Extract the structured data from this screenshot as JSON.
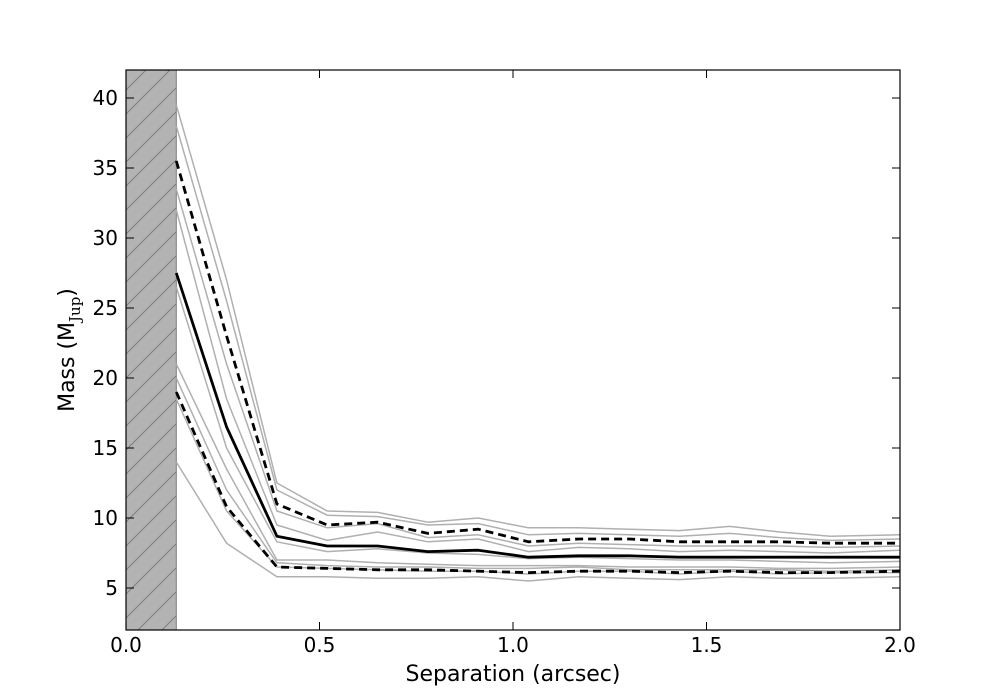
{
  "chart_data": {
    "type": "line",
    "title": "",
    "xlabel": "Separation (arcsec)",
    "ylabel": "Mass (M",
    "ylabel_subscript": "Jup",
    "ylabel_close": ")",
    "xlim": [
      0.0,
      2.0
    ],
    "ylim": [
      2,
      42
    ],
    "xticks": [
      {
        "value": 0.0,
        "label": "0.0"
      },
      {
        "value": 0.5,
        "label": "0.5"
      },
      {
        "value": 1.0,
        "label": "1.0"
      },
      {
        "value": 1.5,
        "label": "1.5"
      },
      {
        "value": 2.0,
        "label": "2.0"
      }
    ],
    "yticks": [
      {
        "value": 5,
        "label": "5"
      },
      {
        "value": 10,
        "label": "10"
      },
      {
        "value": 15,
        "label": "15"
      },
      {
        "value": 20,
        "label": "20"
      },
      {
        "value": 25,
        "label": "25"
      },
      {
        "value": 30,
        "label": "30"
      },
      {
        "value": 35,
        "label": "35"
      },
      {
        "value": 40,
        "label": "40"
      }
    ],
    "grid": false,
    "excluded_region": {
      "x_from": 0.0,
      "x_to": 0.13,
      "fill": "#b3b3b3",
      "hatch": "/"
    },
    "x": [
      0.13,
      0.26,
      0.39,
      0.52,
      0.65,
      0.78,
      0.91,
      1.04,
      1.17,
      1.3,
      1.43,
      1.56,
      1.69,
      1.82,
      2.0
    ],
    "series": [
      {
        "style": "individual",
        "color": "#b0b0b0",
        "values": [
          39.5,
          27.0,
          12.5,
          10.5,
          10.4,
          9.7,
          10.0,
          9.3,
          9.3,
          9.2,
          9.1,
          9.4,
          9.0,
          8.7,
          8.8
        ]
      },
      {
        "style": "individual",
        "color": "#b0b0b0",
        "values": [
          38.0,
          25.5,
          12.0,
          10.2,
          10.1,
          9.5,
          9.6,
          8.8,
          8.9,
          8.8,
          8.7,
          8.9,
          8.6,
          8.4,
          8.5
        ]
      },
      {
        "style": "individual",
        "color": "#b0b0b0",
        "values": [
          33.5,
          21.0,
          10.5,
          9.3,
          9.6,
          8.6,
          8.8,
          8.0,
          8.2,
          8.1,
          8.0,
          8.0,
          8.0,
          7.9,
          8.0
        ]
      },
      {
        "style": "individual",
        "color": "#b0b0b0",
        "values": [
          32.0,
          18.5,
          9.5,
          8.4,
          9.0,
          8.3,
          8.5,
          7.6,
          7.9,
          7.8,
          7.6,
          7.7,
          7.6,
          7.5,
          7.7
        ]
      },
      {
        "style": "individual",
        "color": "#b0b0b0",
        "values": [
          26.5,
          15.0,
          8.3,
          7.6,
          7.8,
          7.5,
          7.4,
          7.1,
          7.2,
          7.1,
          7.0,
          7.0,
          6.9,
          6.8,
          6.9
        ]
      },
      {
        "style": "individual",
        "color": "#b0b0b0",
        "values": [
          21.0,
          13.5,
          7.0,
          7.0,
          6.8,
          6.7,
          6.6,
          6.6,
          6.6,
          6.5,
          6.5,
          6.5,
          6.4,
          6.4,
          6.5
        ]
      },
      {
        "style": "individual",
        "color": "#b0b0b0",
        "values": [
          20.0,
          12.0,
          6.8,
          6.6,
          6.5,
          6.5,
          6.4,
          6.4,
          6.5,
          6.3,
          6.3,
          6.3,
          6.3,
          6.2,
          6.3
        ]
      },
      {
        "style": "individual",
        "color": "#b0b0b0",
        "values": [
          18.5,
          10.5,
          6.5,
          6.4,
          6.3,
          6.2,
          6.2,
          6.0,
          6.2,
          6.2,
          6.0,
          6.2,
          6.0,
          6.1,
          6.1
        ]
      },
      {
        "style": "individual",
        "color": "#b0b0b0",
        "values": [
          14.0,
          8.2,
          5.8,
          5.8,
          5.7,
          5.7,
          5.8,
          5.5,
          5.8,
          5.7,
          5.6,
          5.8,
          5.7,
          5.7,
          5.8
        ]
      },
      {
        "style": "upper",
        "color": "#000000",
        "dash": "8,5",
        "width": 2.8,
        "values": [
          35.5,
          23.0,
          11.0,
          9.5,
          9.7,
          8.9,
          9.2,
          8.3,
          8.5,
          8.5,
          8.3,
          8.3,
          8.3,
          8.2,
          8.2
        ]
      },
      {
        "style": "median",
        "color": "#000000",
        "width": 2.8,
        "values": [
          27.5,
          16.5,
          8.7,
          8.0,
          8.0,
          7.6,
          7.7,
          7.2,
          7.3,
          7.3,
          7.2,
          7.2,
          7.2,
          7.2,
          7.2
        ]
      },
      {
        "style": "lower",
        "color": "#000000",
        "dash": "8,5",
        "width": 2.8,
        "values": [
          19.0,
          10.8,
          6.5,
          6.4,
          6.3,
          6.3,
          6.2,
          6.1,
          6.2,
          6.2,
          6.1,
          6.2,
          6.1,
          6.1,
          6.2
        ]
      }
    ]
  }
}
